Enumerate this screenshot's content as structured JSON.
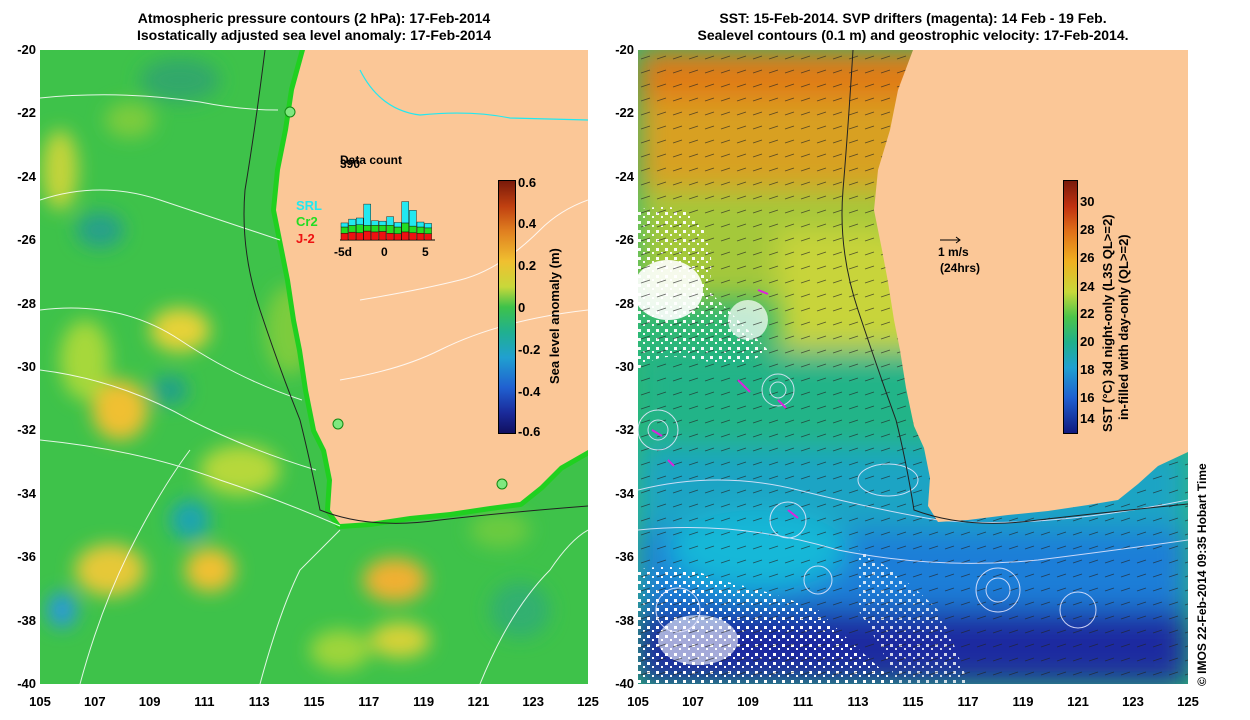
{
  "left_panel": {
    "title_line1": "Atmospheric pressure contours (2 hPa): 17-Feb-2014",
    "title_line2": "Isostatically adjusted sea level anomaly: 17-Feb-2014",
    "colorbar": {
      "label": "Sea level anomaly (m)",
      "ticks": [
        "0.6",
        "0.4",
        "0.2",
        "0",
        "-0.2",
        "-0.4",
        "-0.6"
      ]
    },
    "inset": {
      "title": "Data count",
      "max_label": "390",
      "x_ticks": [
        "-5d",
        "0",
        "5"
      ],
      "legend": [
        {
          "name": "SRL",
          "color": "#22e8f0"
        },
        {
          "name": "Cr2",
          "color": "#22dd22"
        },
        {
          "name": "J-2",
          "color": "#ee1111"
        }
      ],
      "bars": [
        {
          "j2": 0.3,
          "cr2": 0.28,
          "srl": 0.18
        },
        {
          "j2": 0.35,
          "cr2": 0.3,
          "srl": 0.28
        },
        {
          "j2": 0.32,
          "cr2": 0.36,
          "srl": 0.3
        },
        {
          "j2": 0.4,
          "cr2": 0.25,
          "srl": 0.95
        },
        {
          "j2": 0.36,
          "cr2": 0.3,
          "srl": 0.2
        },
        {
          "j2": 0.38,
          "cr2": 0.28,
          "srl": 0.18
        },
        {
          "j2": 0.3,
          "cr2": 0.36,
          "srl": 0.38
        },
        {
          "j2": 0.28,
          "cr2": 0.3,
          "srl": 0.2
        },
        {
          "j2": 0.36,
          "cr2": 0.4,
          "srl": 0.95
        },
        {
          "j2": 0.32,
          "cr2": 0.3,
          "srl": 0.7
        },
        {
          "j2": 0.3,
          "cr2": 0.28,
          "srl": 0.22
        },
        {
          "j2": 0.28,
          "cr2": 0.26,
          "srl": 0.2
        }
      ]
    }
  },
  "right_panel": {
    "title_line1": "SST: 15-Feb-2014. SVP drifters (magenta): 14 Feb - 19 Feb.",
    "title_line2": "Sealevel contours (0.1 m) and geostrophic velocity: 17-Feb-2014.",
    "colorbar": {
      "label_line1": "SST (°C)  3d night-only (L3S QL>=2)",
      "label_line2": "in-filled with day-only (QL>=2)",
      "ticks": [
        "30",
        "28",
        "26",
        "24",
        "22",
        "20",
        "18",
        "16",
        "14"
      ]
    },
    "velocity_key": {
      "line1": "1 m/s",
      "line2": "(24hrs)"
    }
  },
  "axes": {
    "y_ticks": [
      "-20",
      "-22",
      "-24",
      "-26",
      "-28",
      "-30",
      "-32",
      "-34",
      "-36",
      "-38",
      "-40"
    ],
    "x_ticks": [
      "105",
      "107",
      "109",
      "111",
      "113",
      "115",
      "117",
      "119",
      "121",
      "123",
      "125"
    ]
  },
  "credit": "© IMOS 22-Feb-2014 09:35 Hobart Time",
  "colors": {
    "land": "#fbc797",
    "sla_ocean": "#3ec24a",
    "sst_ocean": "#2fb873",
    "coast_fill": "#20d020"
  }
}
